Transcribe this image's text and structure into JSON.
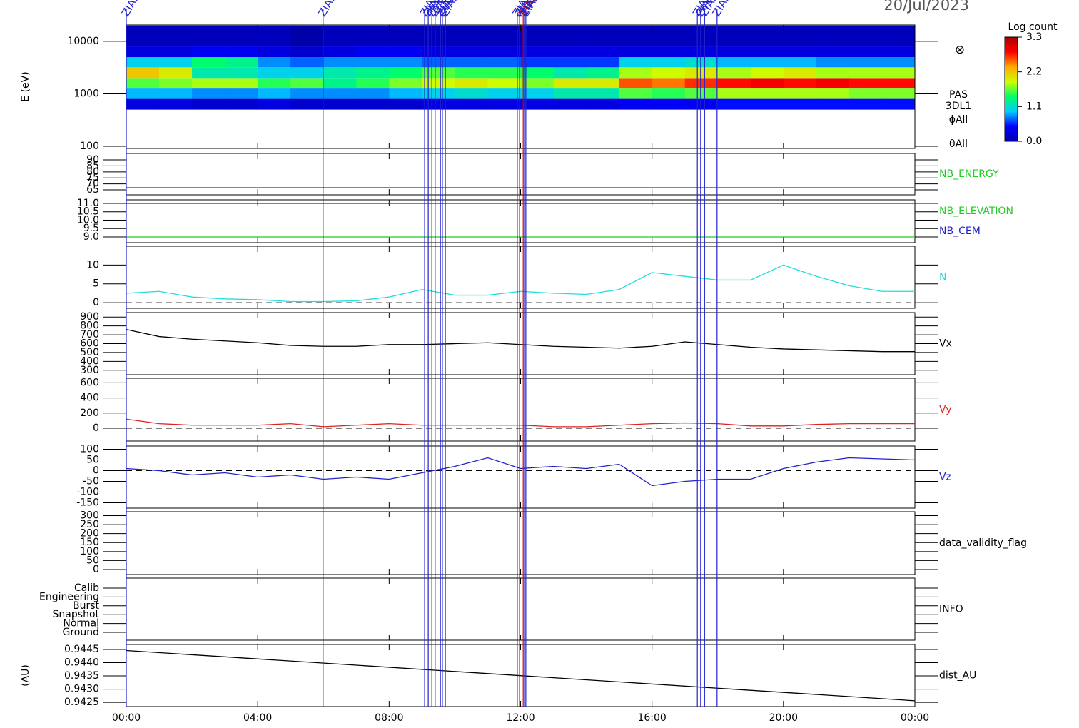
{
  "header": {
    "date": "20/Jul/2023"
  },
  "events": {
    "label": "ZIAS",
    "times": [
      0.0,
      5.99,
      9.08,
      9.19,
      9.3,
      9.4,
      9.56,
      9.62,
      9.71,
      11.9,
      11.97,
      12.08,
      12.12,
      12.16,
      17.38,
      17.48,
      17.6,
      17.98
    ],
    "colors": [
      "#2222cc",
      "#2222cc",
      "#2222cc",
      "#2222cc",
      "#2222cc",
      "#2222cc",
      "#2222cc",
      "#2222cc",
      "#2222cc",
      "#2222cc",
      "#2222cc",
      "#cc0000",
      "#2222cc",
      "#2222cc",
      "#2222cc",
      "#2222cc",
      "#2222cc",
      "#2222cc"
    ]
  },
  "time_axis": {
    "xlim": [
      0,
      24
    ],
    "xticks": [
      {
        "value": 0,
        "label": "00:00"
      },
      {
        "value": 4,
        "label": "04:00"
      },
      {
        "value": 8,
        "label": "08:00"
      },
      {
        "value": 12,
        "label": "12:00"
      },
      {
        "value": 16,
        "label": "16:00"
      },
      {
        "value": 20,
        "label": "20:00"
      },
      {
        "value": 24,
        "label": "00:00"
      }
    ]
  },
  "chart_data": [
    {
      "type": "heatmap",
      "ylabel": "E (eV)",
      "log_y": true,
      "ylim": [
        91,
        20500
      ],
      "yticks": [
        100,
        1000,
        10000
      ],
      "x_bins": [
        0,
        1,
        2,
        3,
        4,
        5,
        6,
        7,
        8,
        9,
        10,
        11,
        12,
        13,
        14,
        15,
        16,
        17,
        18,
        19,
        20,
        21,
        22,
        23,
        24
      ],
      "y_bins": [
        500,
        800,
        1300,
        2000,
        3200,
        5000,
        8000,
        20000
      ],
      "values": [
        [
          0.3,
          0.9,
          1.6,
          2.2,
          1.0,
          0.3,
          0.1
        ],
        [
          0.3,
          0.9,
          1.7,
          2.0,
          1.0,
          0.3,
          0.1
        ],
        [
          0.2,
          0.8,
          1.8,
          1.2,
          1.4,
          0.4,
          0.1
        ],
        [
          0.2,
          0.8,
          1.8,
          1.2,
          1.3,
          0.4,
          0.1
        ],
        [
          0.3,
          0.9,
          1.5,
          1.0,
          0.8,
          0.3,
          0.1
        ],
        [
          0.2,
          0.8,
          1.6,
          1.0,
          0.7,
          0.2,
          0.0
        ],
        [
          0.2,
          0.8,
          1.3,
          1.2,
          0.8,
          0.3,
          0.1
        ],
        [
          0.2,
          0.8,
          1.5,
          1.3,
          0.8,
          0.4,
          0.1
        ],
        [
          0.2,
          0.9,
          1.7,
          1.4,
          0.8,
          0.4,
          0.1
        ],
        [
          0.3,
          1.0,
          1.9,
          1.6,
          0.7,
          0.3,
          0.1
        ],
        [
          0.3,
          1.1,
          2.0,
          1.5,
          0.7,
          0.3,
          0.1
        ],
        [
          0.3,
          1.0,
          1.9,
          1.5,
          0.7,
          0.3,
          0.1
        ],
        [
          0.3,
          1.0,
          1.7,
          1.4,
          0.6,
          0.3,
          0.1
        ],
        [
          0.3,
          1.2,
          2.0,
          1.2,
          0.6,
          0.3,
          0.1
        ],
        [
          0.3,
          1.2,
          2.0,
          1.3,
          0.6,
          0.3,
          0.1
        ],
        [
          0.4,
          1.6,
          2.6,
          1.8,
          1.0,
          0.3,
          0.1
        ],
        [
          0.4,
          1.5,
          2.5,
          1.9,
          1.0,
          0.3,
          0.1
        ],
        [
          0.4,
          1.6,
          2.7,
          2.0,
          1.1,
          0.3,
          0.1
        ],
        [
          0.5,
          1.8,
          2.8,
          1.8,
          0.9,
          0.3,
          0.1
        ],
        [
          0.5,
          1.8,
          2.9,
          1.9,
          0.9,
          0.3,
          0.1
        ],
        [
          0.5,
          1.8,
          2.8,
          2.0,
          0.9,
          0.3,
          0.1
        ],
        [
          0.5,
          1.8,
          2.9,
          1.8,
          0.8,
          0.3,
          0.1
        ],
        [
          0.5,
          1.7,
          2.8,
          1.8,
          0.8,
          0.3,
          0.1
        ],
        [
          0.5,
          1.7,
          2.8,
          1.8,
          0.8,
          0.3,
          0.1
        ]
      ],
      "clim": [
        0,
        3.3
      ],
      "colors": [
        "#0000aa",
        "#0000ff",
        "#00ccff",
        "#00ff66",
        "#ccff00",
        "#ffaa00",
        "#ff0000",
        "#aa0000"
      ],
      "colorbar_title": "Log count",
      "colorbar_ticks": [
        {
          "value": 0,
          "label": "0.0"
        },
        {
          "value": 1.1,
          "label": "1.1"
        },
        {
          "value": 2.2,
          "label": "2.2"
        },
        {
          "value": 3.3,
          "label": "3.3"
        }
      ],
      "labels": [
        "PAS",
        "3DL1",
        "ϕAll",
        "θAll"
      ],
      "symbol": "⊗"
    },
    {
      "type": "line",
      "ylim": [
        60.8,
        95.4
      ],
      "yticks": [
        65,
        70,
        75,
        80,
        85,
        90
      ],
      "x": [
        0,
        24
      ],
      "series": [
        {
          "name": "NB_ENERGY",
          "color": "#22cc22",
          "values": [
            67,
            67
          ]
        }
      ]
    },
    {
      "type": "line",
      "ylim": [
        8.66,
        11.21
      ],
      "yticks": [
        {
          "value": 9,
          "label": "9.0"
        },
        9.5,
        {
          "value": 10,
          "label": "10.0"
        },
        10.5,
        {
          "value": 11,
          "label": "11.0"
        }
      ],
      "x": [
        0,
        24
      ],
      "series": [
        {
          "name": "NB_ELEVATION",
          "color": "#22cc22",
          "values": [
            9,
            9
          ]
        },
        {
          "name": "NB_CEM",
          "color": "#2222cc",
          "values": [
            11,
            11
          ]
        }
      ]
    },
    {
      "type": "line",
      "ylim": [
        -1.5,
        15
      ],
      "yticks": [
        0,
        5,
        10
      ],
      "zero_line": true,
      "x": [
        0,
        1,
        2,
        3,
        4,
        5,
        6,
        7,
        8,
        9,
        10,
        11,
        12,
        13,
        14,
        15,
        16,
        17,
        18,
        19,
        20,
        21,
        22,
        23,
        24
      ],
      "series": [
        {
          "name": "N",
          "color": "#22dddd",
          "values": [
            2.5,
            3,
            1.5,
            1,
            0.8,
            0.3,
            0.3,
            0.5,
            1.5,
            3.5,
            2,
            2,
            3,
            2.5,
            2.2,
            3.5,
            8,
            7,
            6,
            6,
            10,
            7,
            4.5,
            3,
            3
          ]
        }
      ]
    },
    {
      "type": "line",
      "ylim": [
        250,
        950
      ],
      "yticks": [
        300,
        400,
        500,
        600,
        700,
        800,
        900
      ],
      "x": [
        0,
        1,
        2,
        3,
        4,
        5,
        6,
        7,
        8,
        9,
        10,
        11,
        12,
        13,
        14,
        15,
        16,
        17,
        18,
        19,
        20,
        21,
        22,
        23,
        24
      ],
      "series": [
        {
          "name": "Vx",
          "color": "#000000",
          "values": [
            760,
            680,
            650,
            630,
            610,
            580,
            570,
            570,
            590,
            590,
            600,
            610,
            590,
            570,
            560,
            550,
            570,
            620,
            590,
            560,
            540,
            530,
            520,
            510,
            510
          ]
        }
      ]
    },
    {
      "type": "line",
      "ylim": [
        -170,
        660
      ],
      "yticks": [
        0,
        200,
        400,
        600
      ],
      "zero_line": true,
      "x": [
        0,
        1,
        2,
        3,
        4,
        5,
        6,
        7,
        8,
        9,
        10,
        11,
        12,
        13,
        14,
        15,
        16,
        17,
        18,
        19,
        20,
        21,
        22,
        23,
        24
      ],
      "series": [
        {
          "name": "Vy",
          "color": "#dd2222",
          "values": [
            120,
            60,
            40,
            40,
            40,
            60,
            20,
            40,
            60,
            40,
            40,
            40,
            40,
            20,
            20,
            40,
            60,
            70,
            60,
            30,
            30,
            50,
            60,
            60,
            60
          ]
        }
      ]
    },
    {
      "type": "line",
      "ylim": [
        -175,
        115
      ],
      "yticks": [
        -150,
        -100,
        -50,
        0,
        50,
        100
      ],
      "zero_line": true,
      "x": [
        0,
        1,
        2,
        3,
        4,
        5,
        6,
        7,
        8,
        9,
        10,
        11,
        12,
        13,
        14,
        15,
        16,
        17,
        18,
        19,
        20,
        21,
        22,
        23,
        24
      ],
      "series": [
        {
          "name": "Vz",
          "color": "#2222cc",
          "values": [
            10,
            0,
            -20,
            -10,
            -30,
            -20,
            -40,
            -30,
            -40,
            -10,
            20,
            60,
            10,
            20,
            10,
            30,
            -70,
            -50,
            -40,
            -40,
            10,
            40,
            60,
            55,
            50
          ]
        }
      ]
    },
    {
      "type": "line",
      "ylim": [
        -28,
        322
      ],
      "yticks": [
        0,
        50,
        100,
        150,
        200,
        250,
        300
      ],
      "label": "data_validity_flag",
      "series": []
    },
    {
      "type": "category",
      "ycategories": [
        "Calib",
        "Engineering",
        "Burst",
        "Snapshot",
        "Normal",
        "Ground"
      ],
      "label": "INFO"
    },
    {
      "type": "line",
      "ylabel": "(AU)",
      "ylim": [
        0.94234,
        0.94469
      ],
      "yticks": [
        0.9425,
        {
          "value": 0.943,
          "label": "0.9430"
        },
        0.9435,
        {
          "value": 0.944,
          "label": "0.9440"
        },
        0.9445
      ],
      "x": [
        0,
        24
      ],
      "series": [
        {
          "name": "dist_AU",
          "color": "#000000",
          "values": [
            0.94446,
            0.94256
          ]
        }
      ]
    }
  ]
}
